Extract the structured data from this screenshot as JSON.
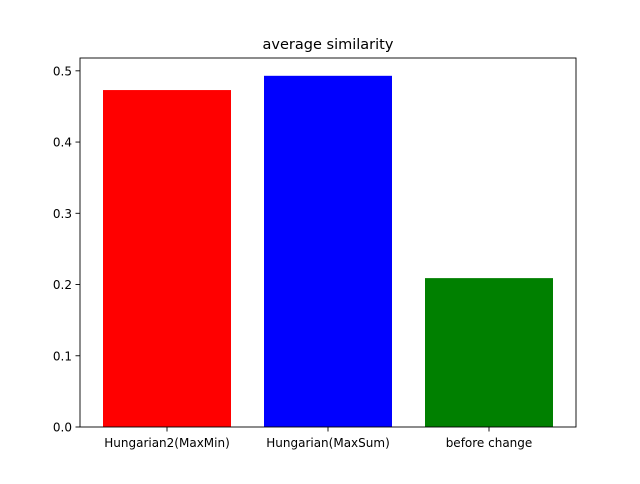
{
  "chart_data": {
    "type": "bar",
    "title": "average similarity",
    "xlabel": "",
    "ylabel": "",
    "categories": [
      "Hungarian2(MaxMin)",
      "Hungarian(MaxSum)",
      "before change"
    ],
    "values": [
      0.473,
      0.493,
      0.209
    ],
    "colors": [
      "#ff0000",
      "#0000ff",
      "#008000"
    ],
    "ylim": [
      0,
      0.518
    ],
    "yticks": [
      0.0,
      0.1,
      0.2,
      0.3,
      0.4,
      0.5
    ],
    "ytick_labels": [
      "0.0",
      "0.1",
      "0.2",
      "0.3",
      "0.4",
      "0.5"
    ],
    "grid": false,
    "legend": false
  }
}
